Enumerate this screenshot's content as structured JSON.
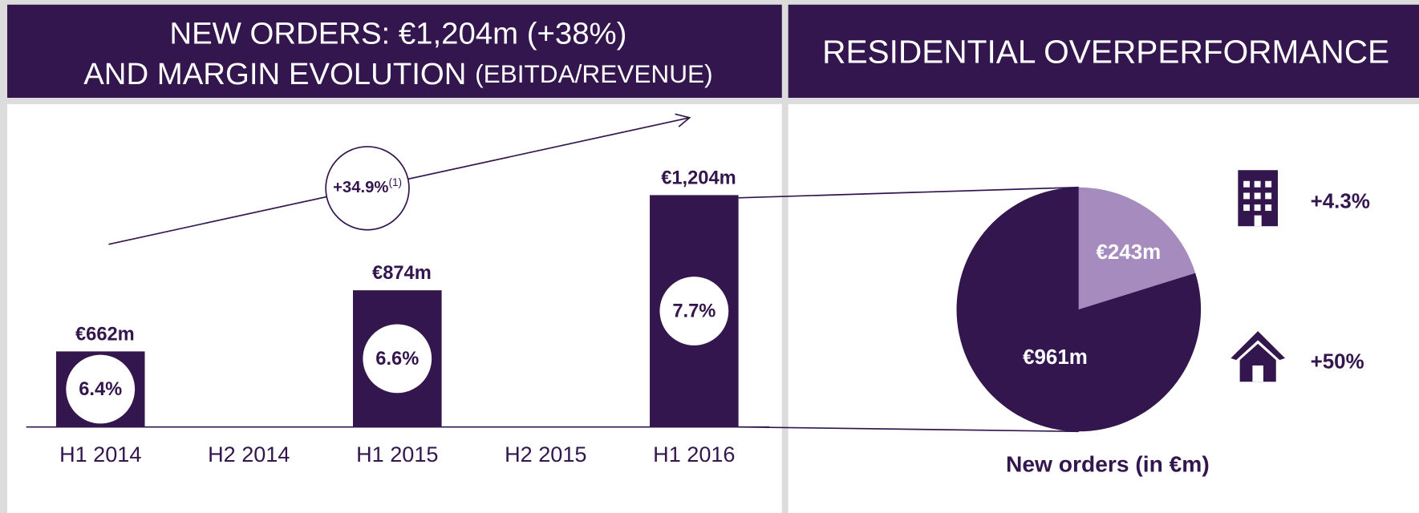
{
  "chart_data": [
    {
      "type": "bar",
      "title": [
        "NEW ORDERS: €1,204m (+38%)",
        "AND MARGIN EVOLUTION"
      ],
      "title_note": "(EBITDA/REVENUE)",
      "categories": [
        "H1 2014",
        "H2 2014",
        "H1 2015",
        "H2 2015",
        "H1 2016"
      ],
      "values": [
        662,
        null,
        874,
        null,
        1204
      ],
      "value_labels": [
        "€662m",
        null,
        "€874m",
        null,
        "€1,204m"
      ],
      "margins": [
        6.4,
        null,
        6.6,
        null,
        7.7
      ],
      "margin_labels": [
        "6.4%",
        null,
        "6.6%",
        null,
        "7.7%"
      ],
      "annotation": {
        "value": 34.9,
        "label": "+34.9%",
        "note": "(1)"
      },
      "color": "#33164d",
      "ylim": [
        400,
        1300
      ]
    },
    {
      "type": "pie",
      "title": "RESIDENTIAL OVERPERFORMANCE",
      "values": [
        243,
        961
      ],
      "value_labels": [
        "€243m",
        "€961m"
      ],
      "colors": [
        "#a68cbe",
        "#33164d"
      ],
      "growth": [
        4.3,
        50
      ],
      "growth_labels": [
        "+4.3%",
        "+50%"
      ],
      "caption": "New orders (in €m)"
    }
  ]
}
